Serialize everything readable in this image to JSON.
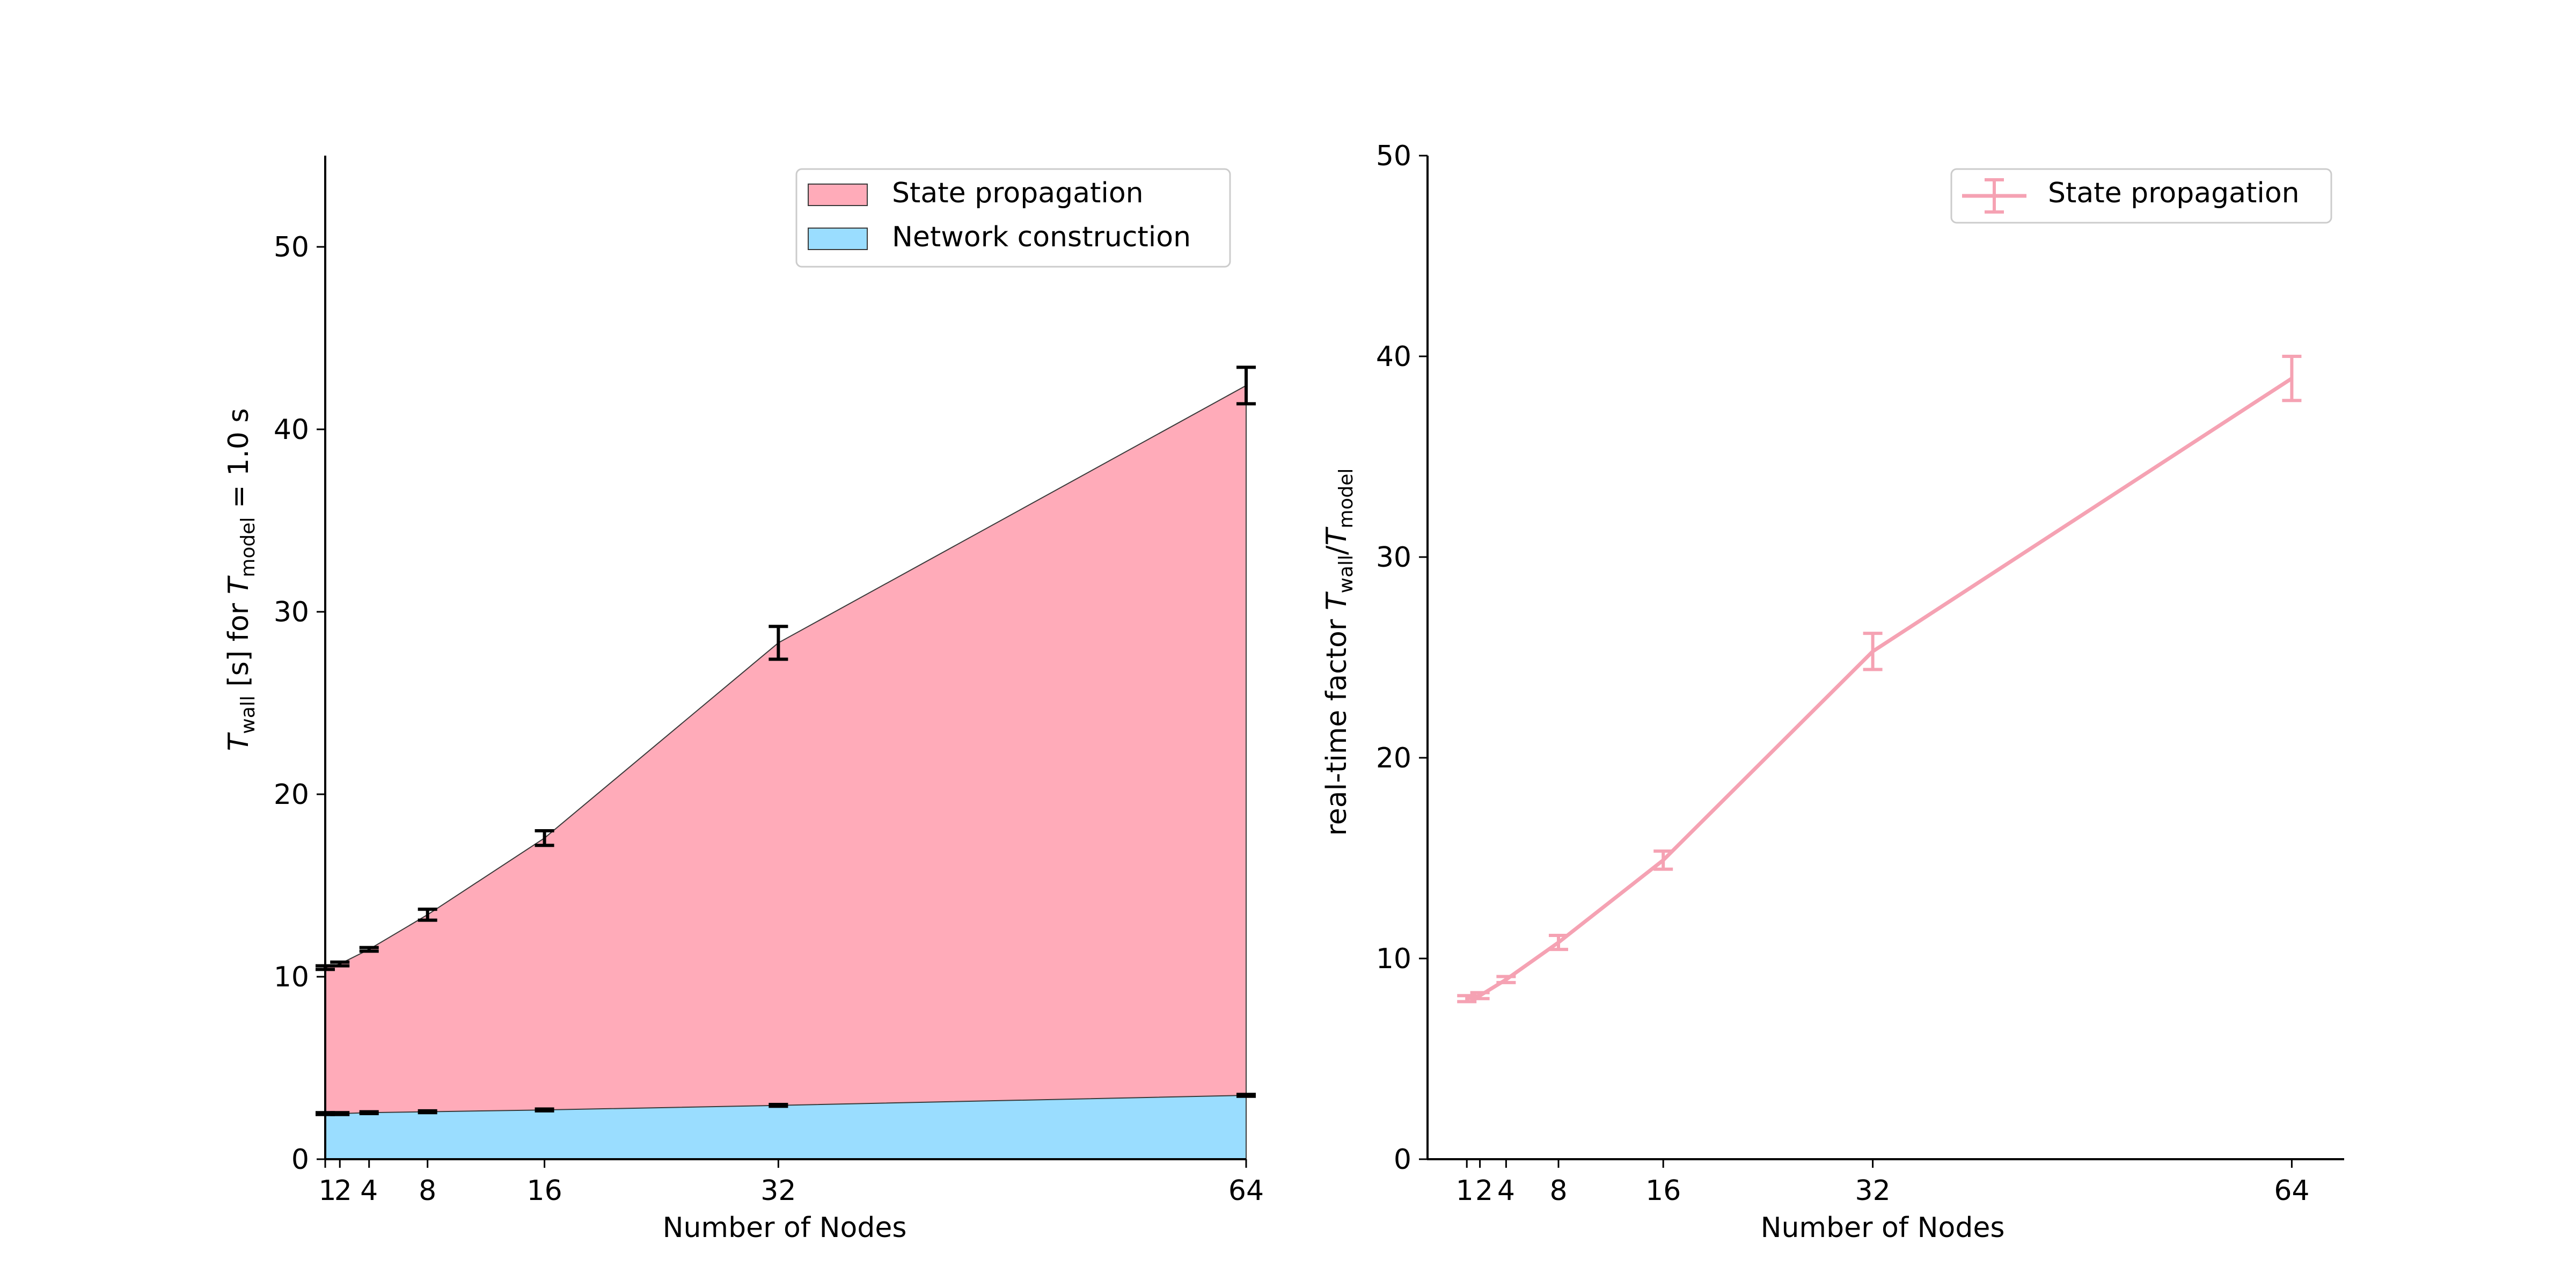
{
  "colors": {
    "state": "#FFABB9",
    "network": "#9ADDFF",
    "line": "#F5A2B3",
    "axis": "#000000",
    "errorbar_left": "#000000"
  },
  "chart_data": [
    {
      "type": "area",
      "stacked": true,
      "title": "",
      "xlabel": "Number of Nodes",
      "ylabel": "T_wall [s] for T_model = 1.0 s",
      "ylabel_parts": {
        "base": "T",
        "sub": "wall",
        "mid": " [s] for ",
        "base2": "T",
        "sub2": "model",
        "tail": " = 1.0 s"
      },
      "x": [
        1,
        2,
        4,
        8,
        16,
        32,
        64
      ],
      "xticks": [
        1,
        2,
        4,
        8,
        16,
        32,
        64
      ],
      "xlim": [
        1,
        64
      ],
      "yticks": [
        0,
        10,
        20,
        30,
        40,
        50
      ],
      "ylim": [
        0,
        55
      ],
      "grid": false,
      "legend_position": "top-right",
      "series": [
        {
          "name": "Network construction",
          "values": [
            2.5,
            2.5,
            2.55,
            2.6,
            2.7,
            2.95,
            3.5
          ],
          "errors": [
            0.05,
            0.05,
            0.05,
            0.05,
            0.05,
            0.05,
            0.05
          ]
        },
        {
          "name": "State propagation",
          "totals": [
            10.5,
            10.7,
            11.5,
            13.4,
            17.6,
            28.3,
            42.4
          ],
          "errors": [
            0.1,
            0.1,
            0.1,
            0.3,
            0.4,
            0.9,
            1.0
          ]
        }
      ]
    },
    {
      "type": "line",
      "title": "",
      "xlabel": "Number of Nodes",
      "ylabel": "real-time factor T_wall/T_model",
      "ylabel_parts": {
        "lead": "real-time factor ",
        "base": "T",
        "sub": "wall",
        "slash": "/",
        "base2": "T",
        "sub2": "model"
      },
      "x": [
        1,
        2,
        4,
        8,
        16,
        32,
        64
      ],
      "xticks": [
        1,
        2,
        4,
        8,
        16,
        32,
        64
      ],
      "xlim": [
        -2,
        68
      ],
      "yticks": [
        0,
        10,
        20,
        30,
        40,
        50
      ],
      "ylim": [
        0,
        50
      ],
      "grid": false,
      "legend_position": "top-right",
      "series": [
        {
          "name": "State propagation",
          "values": [
            8.0,
            8.15,
            8.95,
            10.8,
            14.9,
            25.3,
            38.9
          ],
          "errors": [
            0.15,
            0.15,
            0.15,
            0.35,
            0.45,
            0.9,
            1.1
          ]
        }
      ]
    }
  ]
}
